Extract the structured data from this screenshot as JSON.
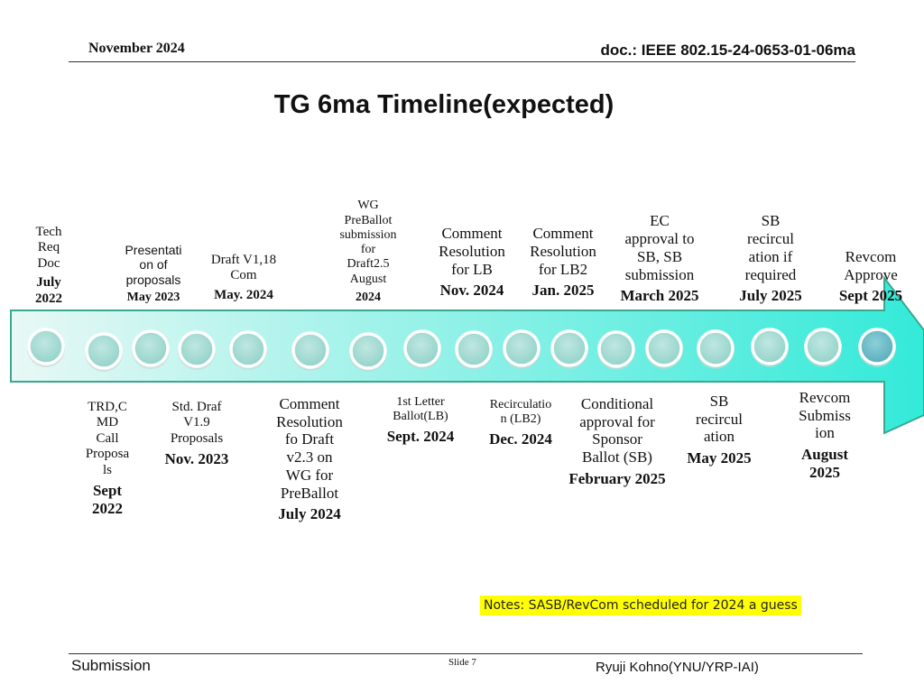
{
  "header": {
    "date": "November 2024",
    "doc": "doc.: IEEE 802.15-24-0653-01-06ma"
  },
  "title": "TG 6ma Timeline(expected)",
  "colors": {
    "arrow_start": "#e8f8f5",
    "arrow_end": "#33ead9",
    "arrow_border": "#3aa890",
    "dot_fill": "#a8ddd6",
    "dot_last": "#6fbcc8",
    "notes_bg": "#ffff00"
  },
  "top_milestones": [
    {
      "lines": [
        "Tech",
        "Req",
        "Doc"
      ],
      "date": "July 2022"
    },
    {
      "lines": [
        "Presentati",
        "on of",
        "proposals"
      ],
      "date": "May 2023"
    },
    {
      "lines": [
        "Draft V1,18",
        "Com"
      ],
      "date": "May. 2024"
    },
    {
      "lines": [
        "WG",
        "PreBallot",
        "submission",
        "for",
        "Draft2.5",
        "August"
      ],
      "date": "2024"
    },
    {
      "lines": [
        "Comment",
        "Resolution",
        "for LB"
      ],
      "date": "Nov. 2024"
    },
    {
      "lines": [
        "Comment",
        "Resolution",
        "for LB2"
      ],
      "date": "Jan. 2025"
    },
    {
      "lines": [
        "EC",
        "approval to",
        "SB, SB",
        "submission"
      ],
      "date": "March 2025"
    },
    {
      "lines": [
        "SB",
        "recircul",
        "ation if",
        "required"
      ],
      "date": "July 2025"
    },
    {
      "lines": [
        "Revcom",
        "Approve"
      ],
      "date": "Sept 2025"
    }
  ],
  "bottom_milestones": [
    {
      "lines": [
        "TRD,C",
        "MD",
        "Call",
        "Proposa",
        "ls"
      ],
      "date": "Sept 2022"
    },
    {
      "lines": [
        "Std. Draf",
        "V1.9",
        "Proposals"
      ],
      "date": "Nov. 2023"
    },
    {
      "lines": [
        "Comment",
        "Resolution",
        "fo Draft",
        "v2.3 on",
        "WG for",
        "PreBallot"
      ],
      "date": "July  2024"
    },
    {
      "lines": [
        "1st Letter",
        "Ballot(LB)"
      ],
      "date": "Sept. 2024"
    },
    {
      "lines": [
        "Recirculatio",
        "n (LB2)"
      ],
      "date": "Dec. 2024"
    },
    {
      "lines": [
        "Conditional",
        "approval for",
        "Sponsor",
        "Ballot (SB)"
      ],
      "date": "February 2025"
    },
    {
      "lines": [
        "SB",
        "recircul",
        "ation"
      ],
      "date": "May 2025"
    },
    {
      "lines": [
        "Revcom",
        "Submiss",
        "ion"
      ],
      "date": "August 2025"
    }
  ],
  "notes": "Notes:  SASB/RevCom scheduled for 2024 a guess",
  "footer": {
    "left": "Submission",
    "slide": "Slide 7",
    "author": "Ryuji Kohno(YNU/YRP-IAI)"
  }
}
